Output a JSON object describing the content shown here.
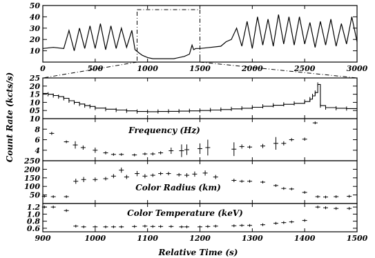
{
  "chart_data": [
    {
      "type": "line",
      "panel": "overview",
      "xlim": [
        0,
        3000
      ],
      "ylim": [
        0,
        50
      ],
      "x_ticks": [
        0,
        500,
        1000,
        1500,
        2000,
        2500,
        3000
      ],
      "y_ticks": [
        10,
        20,
        30,
        40,
        50
      ],
      "x_tick_labels": [
        "0",
        "500",
        "1000",
        "1500",
        "2000",
        "2500",
        "3000"
      ],
      "y_tick_labels": [
        "10",
        "20",
        "30",
        "40",
        "50"
      ],
      "zoom_window": [
        900,
        1500
      ],
      "series": [
        {
          "x": [
            0,
            100,
            200,
            250,
            300,
            350,
            400,
            450,
            500,
            550,
            600,
            650,
            700,
            750,
            800,
            850,
            880,
            920,
            950,
            1000,
            1050,
            1100,
            1150,
            1200,
            1250,
            1300,
            1350,
            1400,
            1425,
            1440,
            1460,
            1500,
            1600,
            1700,
            1750,
            1800,
            1850,
            1900,
            1950,
            2000,
            2050,
            2100,
            2150,
            2200,
            2250,
            2300,
            2350,
            2400,
            2450,
            2500,
            2550,
            2600,
            2650,
            2700,
            2750,
            2800,
            2850,
            2900,
            2950,
            3000
          ],
          "y": [
            12,
            13,
            12,
            28,
            10,
            30,
            12,
            32,
            12,
            34,
            11,
            32,
            12,
            30,
            13,
            28,
            11,
            8,
            6,
            4,
            3,
            3,
            3,
            3,
            3,
            4,
            5,
            7,
            15,
            11,
            12,
            12,
            13,
            14,
            18,
            20,
            30,
            14,
            36,
            12,
            40,
            15,
            38,
            14,
            42,
            16,
            40,
            15,
            40,
            16,
            35,
            13,
            36,
            15,
            38,
            14,
            34,
            16,
            40,
            18
          ]
        }
      ]
    },
    {
      "type": "line",
      "panel": "count-rate-zoom",
      "xlim": [
        900,
        1500
      ],
      "ylim": [
        0,
        25
      ],
      "y_ticks": [
        5,
        10,
        15,
        20,
        25
      ],
      "y_tick_labels": [
        "05",
        "10",
        "15",
        "20",
        "25"
      ],
      "series": [
        {
          "x": [
            900,
            910,
            920,
            930,
            940,
            950,
            960,
            970,
            980,
            990,
            1000,
            1020,
            1040,
            1060,
            1080,
            1100,
            1120,
            1140,
            1160,
            1180,
            1200,
            1220,
            1240,
            1260,
            1280,
            1300,
            1320,
            1340,
            1360,
            1380,
            1400,
            1410,
            1415,
            1420,
            1425,
            1430,
            1440,
            1460,
            1480,
            1500
          ],
          "y": [
            15.5,
            15,
            14.2,
            13.5,
            12.5,
            11,
            10,
            9,
            8,
            7.5,
            6.5,
            5.8,
            5.3,
            4.8,
            4.4,
            4.3,
            4.4,
            4.5,
            4.6,
            4.8,
            5,
            5.3,
            5.6,
            6,
            6.4,
            7,
            7.6,
            8.2,
            8.8,
            9.4,
            10.5,
            12,
            14,
            16,
            21,
            8,
            6.8,
            6.4,
            6.2,
            6.3
          ]
        }
      ]
    },
    {
      "type": "scatter",
      "panel": "frequency",
      "label": "Frequency (Hz)",
      "xlim": [
        900,
        1500
      ],
      "ylim": [
        2,
        10
      ],
      "y_ticks": [
        4,
        6,
        8,
        10
      ],
      "y_tick_labels": [
        "4",
        "6",
        "8",
        "10"
      ],
      "x": [
        917,
        945,
        962,
        977,
        1000,
        1020,
        1035,
        1050,
        1075,
        1095,
        1110,
        1125,
        1145,
        1165,
        1175,
        1200,
        1215,
        1265,
        1280,
        1295,
        1320,
        1345,
        1360,
        1375,
        1400,
        1420
      ],
      "y": [
        7.2,
        5.6,
        5,
        4.5,
        4,
        3.5,
        3.2,
        3.2,
        3.1,
        3.3,
        3.3,
        3.5,
        3.9,
        3.9,
        4.1,
        4.3,
        4.5,
        4.2,
        4.7,
        4.6,
        4.8,
        5.3,
        5.3,
        6,
        6.1,
        9.2
      ],
      "yerr": [
        0.3,
        0.25,
        0.7,
        0.4,
        0.5,
        0.3,
        0.2,
        0.2,
        0.2,
        0.2,
        0.3,
        0.3,
        0.6,
        1.2,
        1,
        1,
        1.5,
        1.3,
        0.4,
        0.3,
        0.4,
        1.2,
        0.4,
        0.3,
        0.3,
        0.2
      ]
    },
    {
      "type": "scatter",
      "panel": "color-radius",
      "label": "Color Radius (km)",
      "xlim": [
        900,
        1500
      ],
      "ylim": [
        0,
        250
      ],
      "y_ticks": [
        50,
        100,
        150,
        200,
        250
      ],
      "y_tick_labels": [
        "50",
        "100",
        "150",
        "200",
        "250"
      ],
      "x": [
        903,
        920,
        945,
        963,
        978,
        1000,
        1020,
        1035,
        1050,
        1060,
        1080,
        1095,
        1110,
        1125,
        1140,
        1160,
        1175,
        1190,
        1210,
        1230,
        1265,
        1280,
        1295,
        1320,
        1345,
        1360,
        1375,
        1400,
        1425,
        1440,
        1460,
        1485
      ],
      "y": [
        42,
        40,
        40,
        130,
        140,
        140,
        145,
        160,
        195,
        155,
        175,
        160,
        165,
        175,
        175,
        168,
        165,
        172,
        178,
        155,
        135,
        130,
        130,
        125,
        105,
        88,
        85,
        65,
        40,
        38,
        40,
        42
      ],
      "yerr": [
        5,
        5,
        6,
        15,
        15,
        12,
        10,
        12,
        15,
        12,
        15,
        12,
        10,
        10,
        10,
        10,
        12,
        15,
        15,
        12,
        10,
        8,
        8,
        8,
        6,
        6,
        6,
        5,
        5,
        5,
        5,
        5
      ]
    },
    {
      "type": "scatter",
      "panel": "color-temperature",
      "label": "Color Temperature (keV)",
      "xlabel": "Relative Time (s)",
      "xlim": [
        900,
        1500
      ],
      "ylim": [
        0.5,
        1.3
      ],
      "x_ticks": [
        900,
        1000,
        1100,
        1200,
        1300,
        1400,
        1500
      ],
      "x_tick_labels": [
        "900",
        "1000",
        "1100",
        "1200",
        "1300",
        "1400",
        "1500"
      ],
      "y_ticks": [
        0.6,
        0.8,
        1.0,
        1.2
      ],
      "y_tick_labels": [
        "0.6",
        "0.8",
        "1.0",
        "1.2"
      ],
      "x": [
        903,
        920,
        945,
        963,
        978,
        1000,
        1020,
        1035,
        1050,
        1075,
        1095,
        1110,
        1125,
        1145,
        1165,
        1175,
        1200,
        1215,
        1230,
        1265,
        1280,
        1295,
        1320,
        1345,
        1360,
        1375,
        1400,
        1425,
        1440,
        1460,
        1485
      ],
      "y": [
        1.2,
        1.2,
        1.1,
        0.66,
        0.64,
        0.64,
        0.64,
        0.64,
        0.64,
        0.65,
        0.66,
        0.65,
        0.65,
        0.65,
        0.64,
        0.64,
        0.64,
        0.65,
        0.66,
        0.67,
        0.68,
        0.68,
        0.7,
        0.74,
        0.76,
        0.78,
        0.82,
        1.2,
        1.18,
        1.16,
        1.16
      ],
      "yerr": [
        0.04,
        0.04,
        0.04,
        0.02,
        0.02,
        0.02,
        0.02,
        0.02,
        0.02,
        0.02,
        0.02,
        0.02,
        0.02,
        0.02,
        0.02,
        0.02,
        0.02,
        0.02,
        0.02,
        0.02,
        0.02,
        0.02,
        0.02,
        0.02,
        0.02,
        0.02,
        0.02,
        0.04,
        0.04,
        0.04,
        0.04
      ]
    }
  ],
  "labels": {
    "ylabel_shared": "Count Rate (kcts/s)",
    "freq_label": "Frequency (Hz)",
    "radius_label": "Color Radius (km)",
    "temp_label": "Color Temperature (keV)",
    "xlabel": "Relative Time (s)"
  }
}
